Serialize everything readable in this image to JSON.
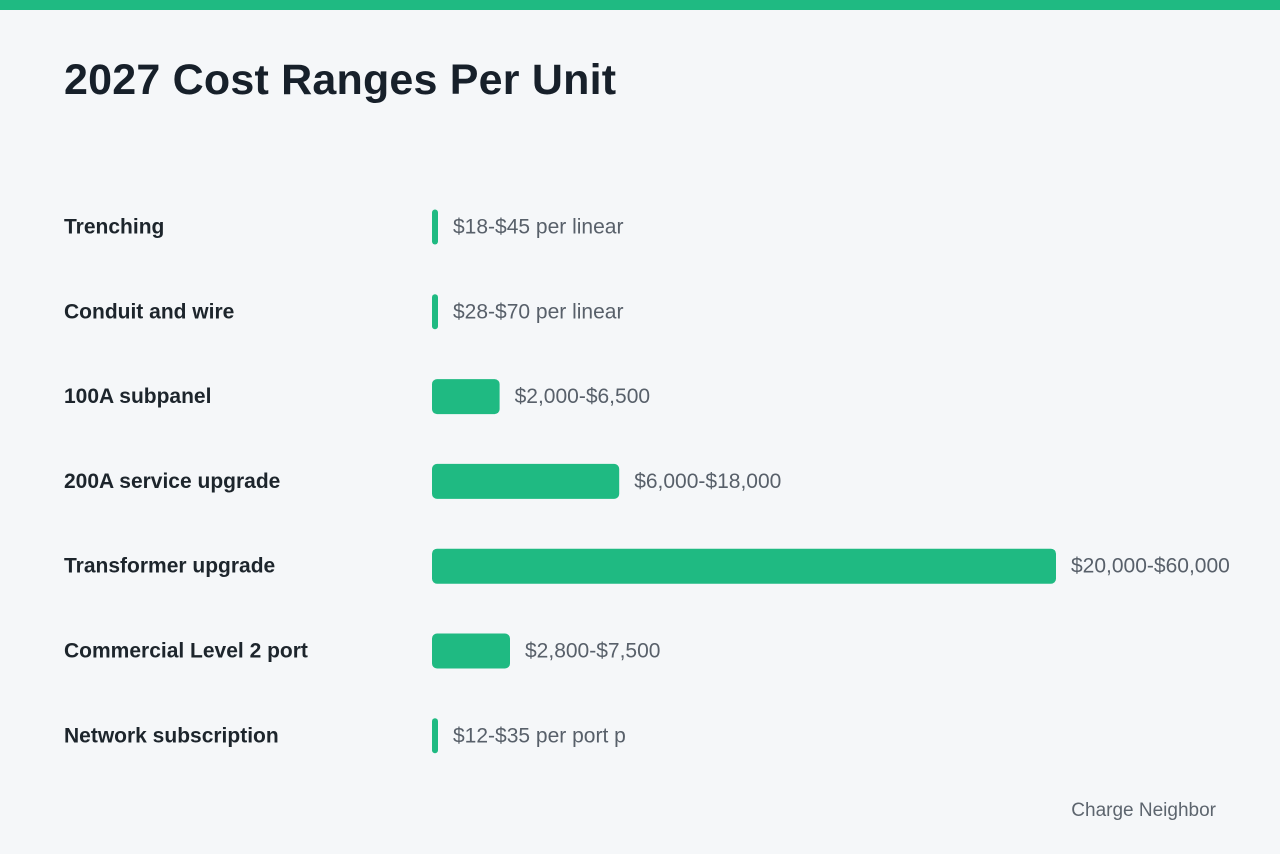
{
  "colors": {
    "accent": "#1fba82",
    "background": "#f5f7f9",
    "title": "#17202a",
    "category_text": "#1d252c",
    "value_text": "#58606a",
    "source_text": "#5d656e"
  },
  "source": "Charge Neighbor",
  "chart_data": {
    "type": "bar",
    "orientation": "horizontal",
    "title": "2027 Cost Ranges Per Unit",
    "xlabel": "",
    "ylabel": "",
    "grid": false,
    "legend": "none",
    "categories": [
      "Trenching",
      "Conduit and wire",
      "100A subpanel",
      "200A service upgrade",
      "Transformer upgrade",
      "Commercial Level 2 port",
      "Network subscription"
    ],
    "value_labels": [
      "$18-$45 per linear",
      "$28-$70 per linear",
      "$2,000-$6,500",
      "$6,000-$18,000",
      "$20,000-$60,000",
      "$2,800-$7,500",
      "$12-$35 per port p"
    ],
    "values": [
      45,
      70,
      6500,
      18000,
      60000,
      7500,
      35
    ],
    "xlim": [
      0,
      60000
    ]
  }
}
